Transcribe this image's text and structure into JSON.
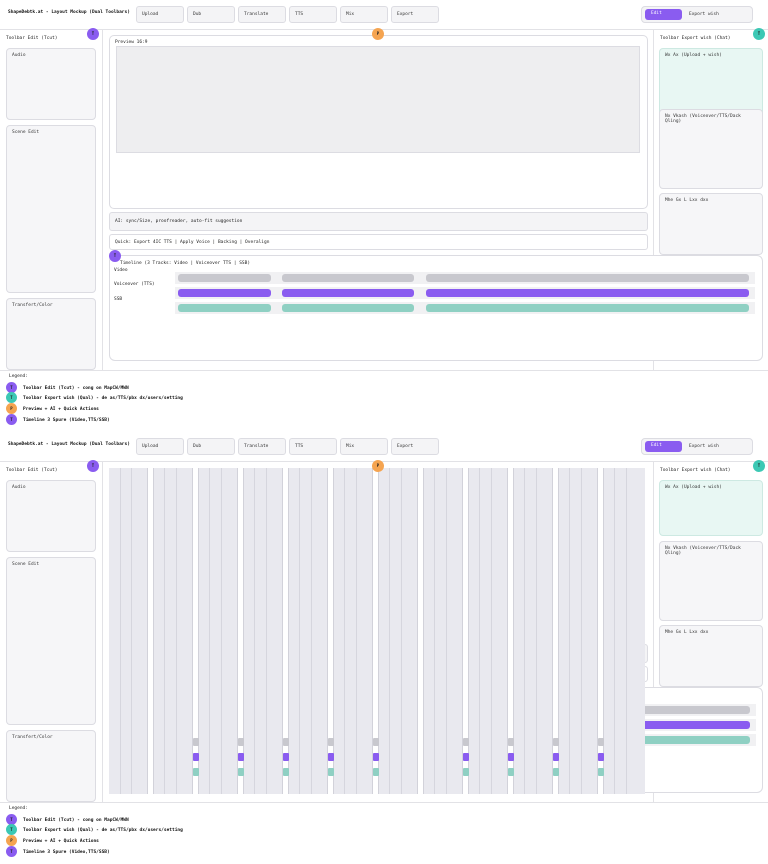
{
  "app": {
    "title": "ShapeDebtk.at - Layout Mockup (Dual Toolbars)"
  },
  "toolbar": {
    "buttons": [
      "Upload",
      "Dub",
      "Translate",
      "TTS",
      "Mix",
      "Export"
    ]
  },
  "mode": {
    "edit": "Edit",
    "export": "Export wish"
  },
  "left": {
    "title": "Toolbar Edit (Tcut)",
    "panels": [
      "Audio",
      "Scene Edit",
      "Transfert/Color"
    ]
  },
  "right": {
    "title": "Toolbar Export wish (Chat)",
    "panels": [
      "Wx Ax (Upload + wish)",
      "Nx Vkash (Voiceover/TTS/Dack Qling)",
      "Mhe Gx L Lxx dxx"
    ]
  },
  "preview": {
    "title": "Preview 16:9"
  },
  "ai_bar": {
    "text": "AI: sync/Size, proofreader, auto-fit suggestion"
  },
  "quick": {
    "text": "Quick: Export 4IC TTS | Apply Voice | Backing | Overalign"
  },
  "timeline": {
    "title": "Timeline (3 Tracks: Video | Voiceover TTS | SSB)",
    "tracks": [
      "Video",
      "Voiceover (TTS)",
      "SSB"
    ]
  },
  "badges": {
    "purple": "T",
    "teal": "T",
    "orange": "P"
  },
  "legend": {
    "title": "Legend:",
    "items": [
      "Toolbar Edit (Tcut) - cong on MapCW/MWN",
      "Toolbar Export wish (Qual) - de as/TTS/pbx dx/users/setting",
      "Preview + AI + Quick Actions",
      "Timeline 3 Spure (Video,TTS/SSB)"
    ]
  },
  "colors": {
    "accent": "#8a5cf0",
    "teal": "#3cc8b4",
    "orange": "#f5a450",
    "mint": "#e8f7f3"
  }
}
